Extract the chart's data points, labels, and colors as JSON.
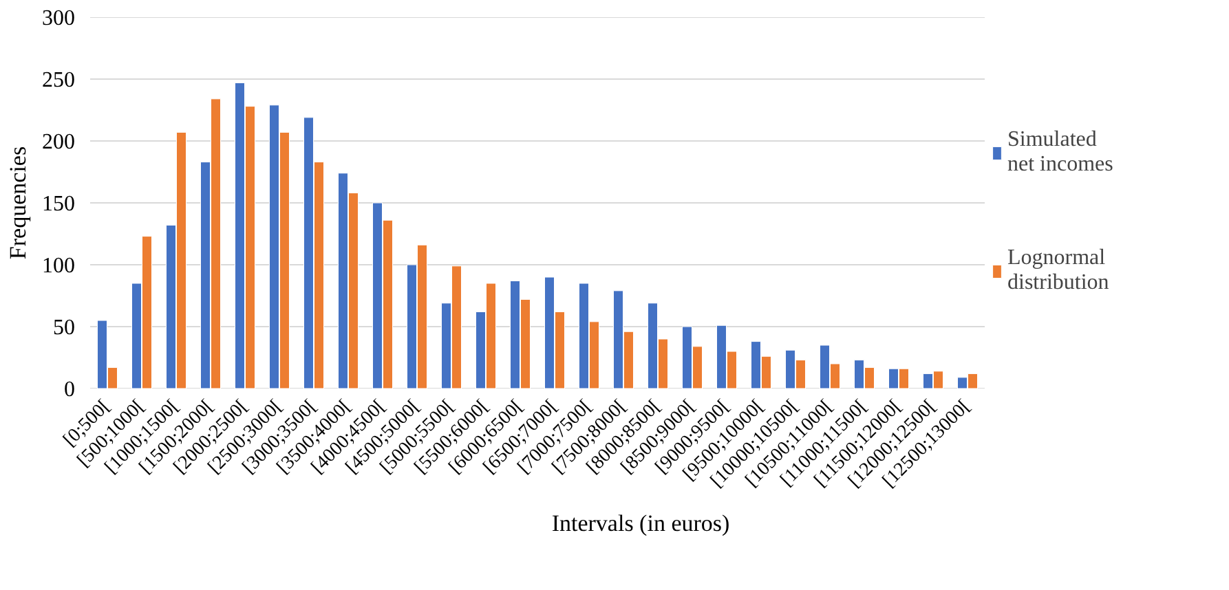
{
  "chart_data": {
    "type": "bar",
    "xlabel": "Intervals (in euros)",
    "ylabel": "Frequencies",
    "categories": [
      "[0;500[",
      "[500;1000[",
      "[1000;1500[",
      "[1500;2000[",
      "[2000;2500[",
      "[2500;3000[",
      "[3000;3500[",
      "[3500;4000[",
      "[4000;4500[",
      "[4500;5000[",
      "[5000;5500[",
      "[5500;6000[",
      "[6000;6500[",
      "[6500;7000[",
      "[7000;7500[",
      "[7500;8000[",
      "[8000;8500[",
      "[8500;9000[",
      "[9000;9500[",
      "[9500;10000[",
      "[10000;10500[",
      "[10500;11000[",
      "[11000;11500[",
      "[11500;12000[",
      "[12000;12500[",
      "[12500;13000["
    ],
    "series": [
      {
        "name": "Simulated net incomes",
        "color": "#4472c4",
        "values": [
          55,
          85,
          132,
          183,
          247,
          229,
          219,
          174,
          150,
          100,
          69,
          62,
          87,
          90,
          85,
          79,
          69,
          50,
          51,
          38,
          31,
          35,
          23,
          16,
          12,
          9
        ]
      },
      {
        "name": "Lognormal distribution",
        "color": "#ed7d31",
        "values": [
          17,
          123,
          207,
          234,
          228,
          207,
          183,
          158,
          136,
          116,
          99,
          85,
          72,
          62,
          54,
          46,
          40,
          34,
          30,
          26,
          23,
          20,
          17,
          16,
          14,
          12
        ]
      }
    ],
    "ylim": [
      0,
      300
    ],
    "yticks": [
      0,
      50,
      100,
      150,
      200,
      250,
      300
    ],
    "grid": "y",
    "legend": "right"
  }
}
